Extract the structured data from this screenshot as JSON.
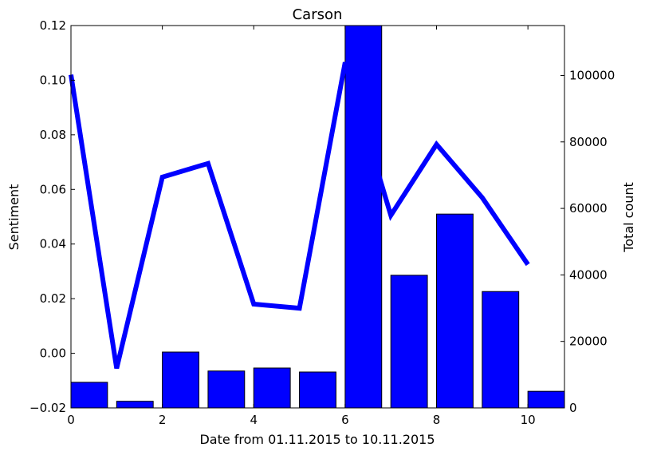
{
  "chart_data": {
    "type": "bar+line",
    "title": "Carson",
    "xlabel": "Date from 01.11.2015 to 10.11.2015",
    "ylabel_left": "Sentiment",
    "ylabel_right": "Total count",
    "xlim": [
      0,
      10.8
    ],
    "x_ticks": [
      0,
      2,
      4,
      6,
      8,
      10
    ],
    "x_tick_labels": [
      "0",
      "2",
      "4",
      "6",
      "8",
      "10"
    ],
    "ylim_left": [
      -0.02,
      0.12
    ],
    "y_left_ticks": [
      -0.02,
      0.0,
      0.02,
      0.04,
      0.06,
      0.08,
      0.1,
      0.12
    ],
    "y_left_tick_labels": [
      "−0.02",
      "0.00",
      "0.02",
      "0.04",
      "0.06",
      "0.08",
      "0.10",
      "0.12"
    ],
    "ylim_right": [
      0,
      115000
    ],
    "y_right_ticks": [
      0,
      20000,
      40000,
      60000,
      80000,
      100000
    ],
    "y_right_tick_labels": [
      "0",
      "20000",
      "40000",
      "60000",
      "80000",
      "100000"
    ],
    "grid": false,
    "colors": {
      "bars": "#0000ff",
      "line": "#0000ff",
      "edge": "#000000"
    },
    "bar_width": 0.8,
    "series": [
      {
        "kind": "bar",
        "axis": "right",
        "x": [
          0,
          1,
          2,
          3,
          4,
          5,
          6,
          7,
          8,
          9,
          10
        ],
        "values": [
          7700,
          2000,
          16800,
          11100,
          12000,
          10800,
          115000,
          39900,
          58300,
          35000,
          5000
        ]
      },
      {
        "kind": "line",
        "axis": "left",
        "x": [
          0,
          1,
          2,
          3,
          4,
          5,
          6,
          7,
          8,
          9,
          10
        ],
        "values": [
          0.102,
          -0.0055,
          0.0645,
          0.0695,
          0.018,
          0.0165,
          0.1065,
          0.0505,
          0.0765,
          0.057,
          0.0325
        ]
      }
    ]
  }
}
